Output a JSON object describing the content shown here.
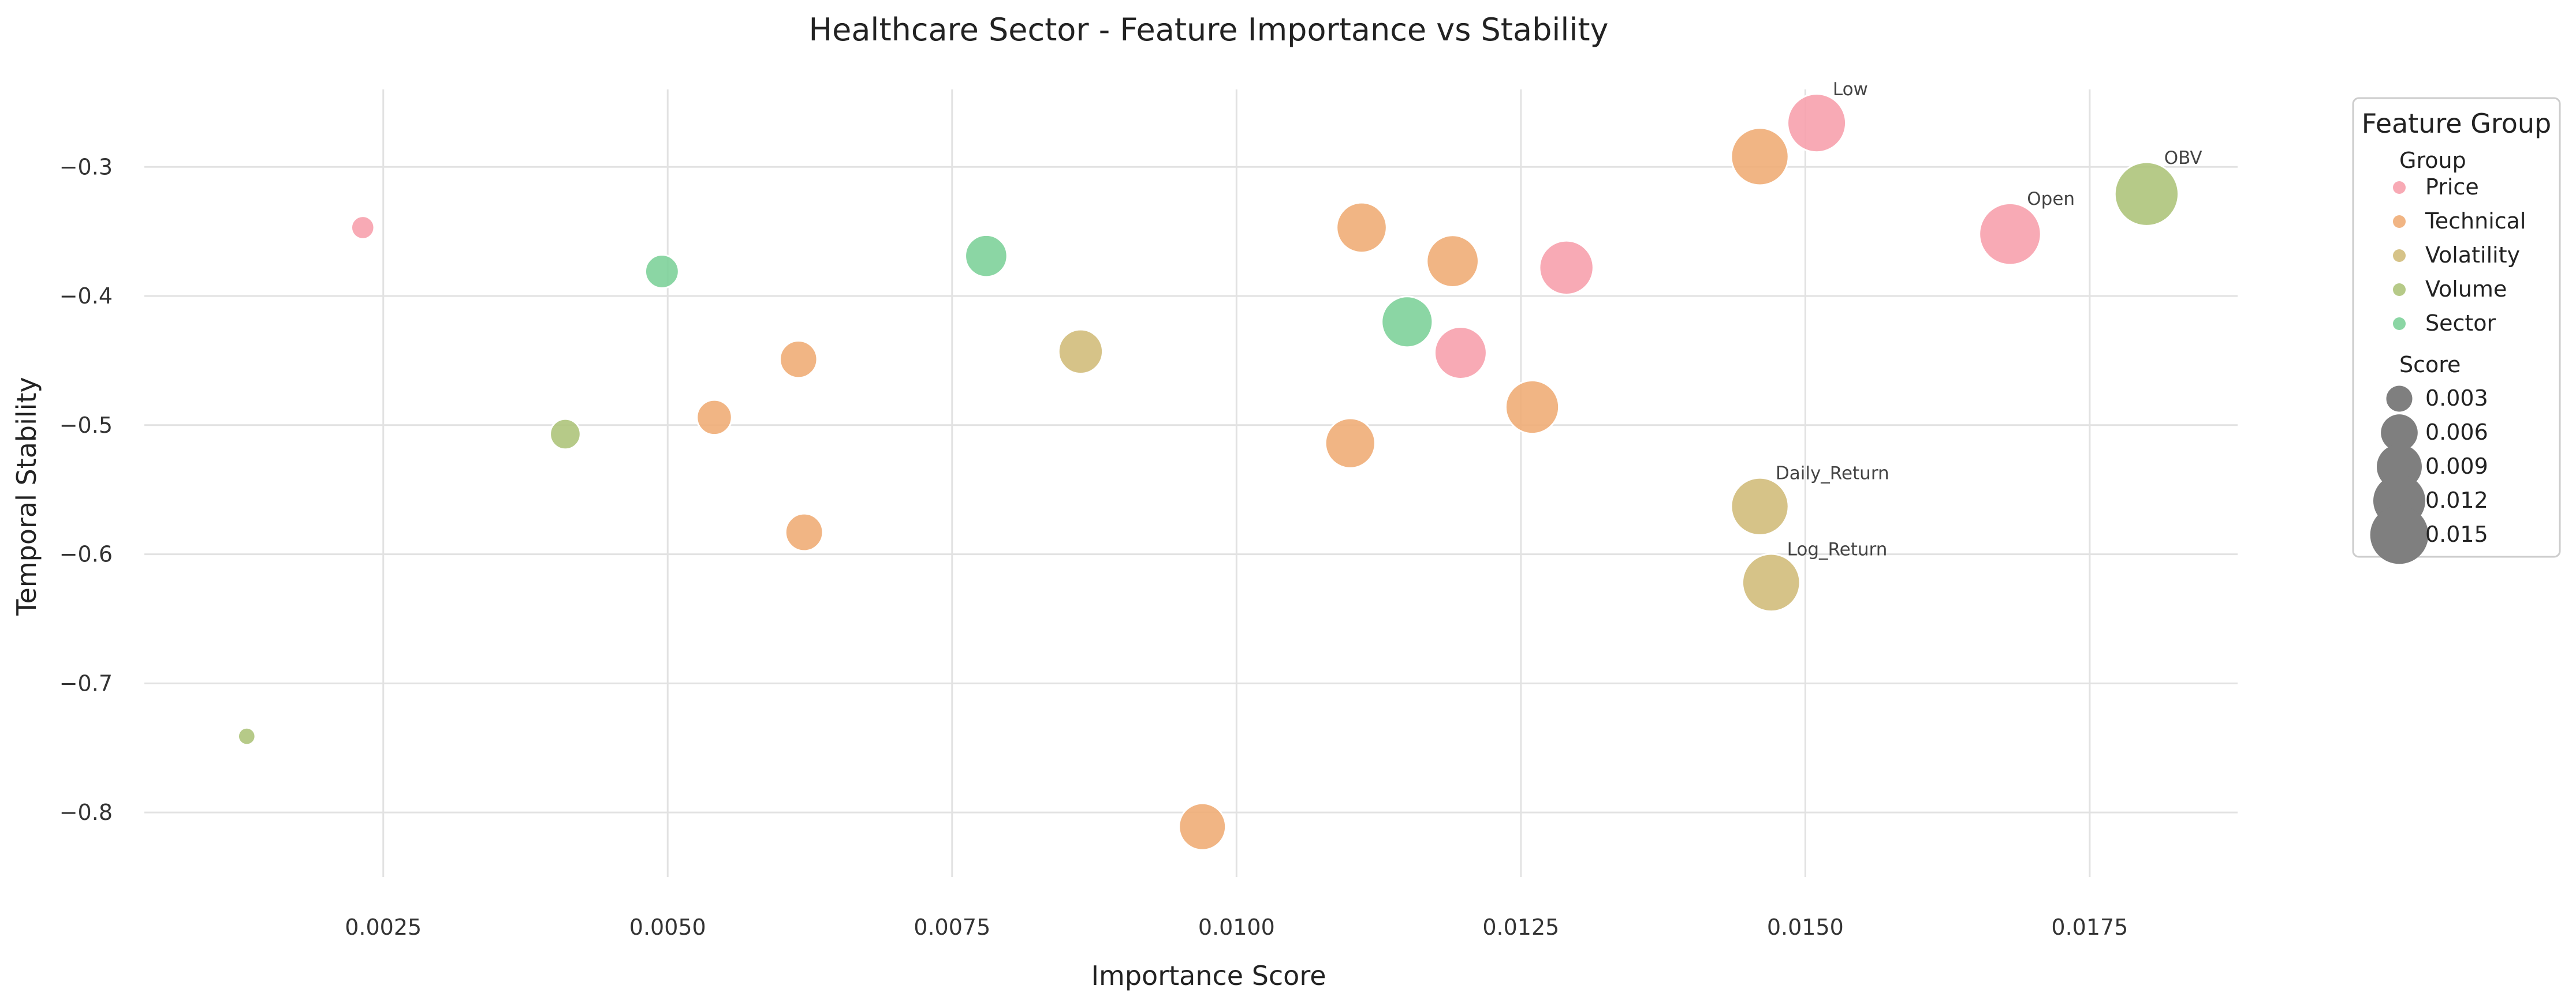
{
  "chart_data": {
    "type": "scatter",
    "title": "Healthcare Sector - Feature Importance vs Stability",
    "xlabel": "Importance Score",
    "ylabel": "Temporal Stability",
    "xlim": [
      0.0004,
      0.0188
    ],
    "ylim": [
      -0.85,
      -0.24
    ],
    "xticks": [
      0.0025,
      0.005,
      0.0075,
      0.01,
      0.0125,
      0.015,
      0.0175
    ],
    "xtick_labels": [
      "0.0025",
      "0.0050",
      "0.0075",
      "0.0100",
      "0.0125",
      "0.0150",
      "0.0175"
    ],
    "yticks": [
      -0.3,
      -0.4,
      -0.5,
      -0.6,
      -0.7,
      -0.8
    ],
    "ytick_labels": [
      "−0.3",
      "−0.4",
      "−0.5",
      "−0.6",
      "−0.7",
      "−0.8"
    ],
    "grid": true,
    "legend": {
      "title": "Feature Group",
      "position": "outside-right",
      "hue_title": "Group",
      "size_title": "Score",
      "groups": [
        {
          "name": "Price",
          "color": "#f7a1ad"
        },
        {
          "name": "Technical",
          "color": "#efad77"
        },
        {
          "name": "Volatility",
          "color": "#d2bd7b"
        },
        {
          "name": "Volume",
          "color": "#aec47b"
        },
        {
          "name": "Sector",
          "color": "#7ed19a"
        }
      ],
      "sizes": [
        {
          "label": "0.003",
          "value": 0.003
        },
        {
          "label": "0.006",
          "value": 0.006
        },
        {
          "label": "0.009",
          "value": 0.009
        },
        {
          "label": "0.012",
          "value": 0.012
        },
        {
          "label": "0.015",
          "value": 0.015
        }
      ]
    },
    "points": [
      {
        "x": 0.00232,
        "y": -0.347,
        "group": "Price"
      },
      {
        "x": 0.0151,
        "y": -0.266,
        "group": "Price",
        "label": "Low"
      },
      {
        "x": 0.0168,
        "y": -0.352,
        "group": "Price",
        "label": "Open"
      },
      {
        "x": 0.0129,
        "y": -0.378,
        "group": "Price"
      },
      {
        "x": 0.01197,
        "y": -0.444,
        "group": "Price"
      },
      {
        "x": 0.0146,
        "y": -0.292,
        "group": "Technical"
      },
      {
        "x": 0.0111,
        "y": -0.347,
        "group": "Technical"
      },
      {
        "x": 0.0119,
        "y": -0.373,
        "group": "Technical"
      },
      {
        "x": 0.00615,
        "y": -0.449,
        "group": "Technical"
      },
      {
        "x": 0.00541,
        "y": -0.494,
        "group": "Technical"
      },
      {
        "x": 0.0126,
        "y": -0.486,
        "group": "Technical"
      },
      {
        "x": 0.011,
        "y": -0.514,
        "group": "Technical"
      },
      {
        "x": 0.0062,
        "y": -0.583,
        "group": "Technical"
      },
      {
        "x": 0.0097,
        "y": -0.811,
        "group": "Technical"
      },
      {
        "x": 0.00863,
        "y": -0.443,
        "group": "Volatility"
      },
      {
        "x": 0.0146,
        "y": -0.563,
        "group": "Volatility",
        "label": "Daily_Return"
      },
      {
        "x": 0.0147,
        "y": -0.622,
        "group": "Volatility",
        "label": "Log_Return"
      },
      {
        "x": 0.018,
        "y": -0.321,
        "group": "Volume",
        "label": "OBV"
      },
      {
        "x": 0.0041,
        "y": -0.507,
        "group": "Volume"
      },
      {
        "x": 0.0013,
        "y": -0.741,
        "group": "Volume"
      },
      {
        "x": 0.00495,
        "y": -0.381,
        "group": "Sector"
      },
      {
        "x": 0.0078,
        "y": -0.369,
        "group": "Sector"
      },
      {
        "x": 0.0115,
        "y": -0.42,
        "group": "Sector"
      }
    ]
  }
}
